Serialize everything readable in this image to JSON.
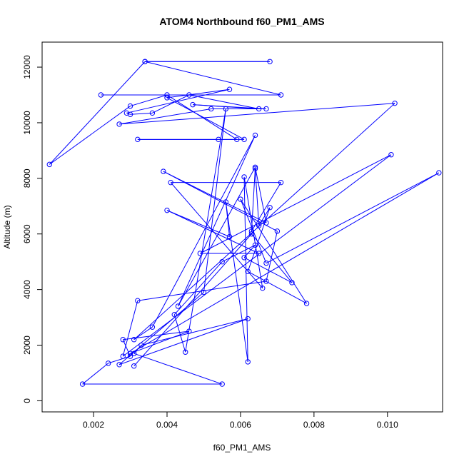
{
  "chart_data": {
    "type": "line",
    "title": "ATOM4 Northbound f60_PM1_AMS",
    "xlabel": "f60_PM1_AMS",
    "ylabel": "Altitude (m)",
    "xlim": [
      0.0006,
      0.0115
    ],
    "ylim": [
      -400,
      12900
    ],
    "x_ticks": [
      0.002,
      0.004,
      0.006,
      0.008,
      0.01
    ],
    "x_tick_labels": [
      "0.002",
      "0.004",
      "0.006",
      "0.008",
      "0.010"
    ],
    "y_ticks": [
      0,
      2000,
      4000,
      6000,
      8000,
      10000,
      12000
    ],
    "y_tick_labels": [
      "0",
      "2000",
      "4000",
      "6000",
      "8000",
      "10000",
      "12000"
    ],
    "grid": false,
    "legend": false,
    "series_color": "#0000ff",
    "marker": "open-circle",
    "series": [
      {
        "points": [
          [
            0.0022,
            11000
          ],
          [
            0.0071,
            11000
          ],
          [
            0.0034,
            12200
          ],
          [
            0.0068,
            12200
          ],
          [
            0.0034,
            12200
          ],
          [
            0.0008,
            8500
          ],
          [
            0.003,
            10600
          ],
          [
            0.004,
            11000
          ],
          [
            0.0059,
            9400
          ],
          [
            0.0032,
            9400
          ],
          [
            0.0054,
            9400
          ],
          [
            0.0061,
            9400
          ],
          [
            0.004,
            10900
          ],
          [
            0.0057,
            11200
          ],
          [
            0.0029,
            10350
          ],
          [
            0.003,
            10300
          ],
          [
            0.0036,
            10350
          ],
          [
            0.0046,
            11000
          ],
          [
            0.0065,
            10500
          ],
          [
            0.0047,
            10650
          ],
          [
            0.0067,
            10500
          ],
          [
            0.0052,
            10500
          ],
          [
            0.0027,
            9950
          ],
          [
            0.0102,
            10700
          ],
          [
            0.0031,
            2200
          ],
          [
            0.0036,
            2650
          ],
          [
            0.0064,
            9550
          ],
          [
            0.0043,
            3400
          ],
          [
            0.0064,
            8400
          ],
          [
            0.0067,
            6400
          ],
          [
            0.0039,
            8250
          ],
          [
            0.007,
            6100
          ],
          [
            0.0067,
            4300
          ],
          [
            0.0032,
            3600
          ],
          [
            0.0028,
            1600
          ],
          [
            0.0101,
            8850
          ],
          [
            0.0049,
            5300
          ],
          [
            0.0065,
            5300
          ],
          [
            0.004,
            6850
          ],
          [
            0.0057,
            5900
          ],
          [
            0.0056,
            7150
          ],
          [
            0.0062,
            1400
          ],
          [
            0.0061,
            8050
          ],
          [
            0.0066,
            4050
          ],
          [
            0.0041,
            7850
          ],
          [
            0.0071,
            7850
          ],
          [
            0.0063,
            6100
          ],
          [
            0.0064,
            8350
          ],
          [
            0.0065,
            6300
          ],
          [
            0.0068,
            6950
          ],
          [
            0.0062,
            4650
          ],
          [
            0.0078,
            3500
          ],
          [
            0.006,
            7250
          ],
          [
            0.0067,
            4950
          ],
          [
            0.0114,
            8200
          ],
          [
            0.003,
            1700
          ],
          [
            0.0046,
            2500
          ],
          [
            0.0028,
            2200
          ],
          [
            0.003,
            1600
          ],
          [
            0.0024,
            1350
          ],
          [
            0.0017,
            600
          ],
          [
            0.0055,
            600
          ],
          [
            0.0031,
            1700
          ],
          [
            0.0033,
            2000
          ],
          [
            0.0062,
            2950
          ],
          [
            0.0027,
            1300
          ],
          [
            0.005,
            3900
          ],
          [
            0.0056,
            10500
          ],
          [
            0.0045,
            1750
          ],
          [
            0.0042,
            3100
          ],
          [
            0.0055,
            5000
          ],
          [
            0.0064,
            5600
          ],
          [
            0.0061,
            5150
          ],
          [
            0.0074,
            4250
          ],
          [
            0.0063,
            6000
          ],
          [
            0.0031,
            1250
          ]
        ]
      }
    ]
  }
}
